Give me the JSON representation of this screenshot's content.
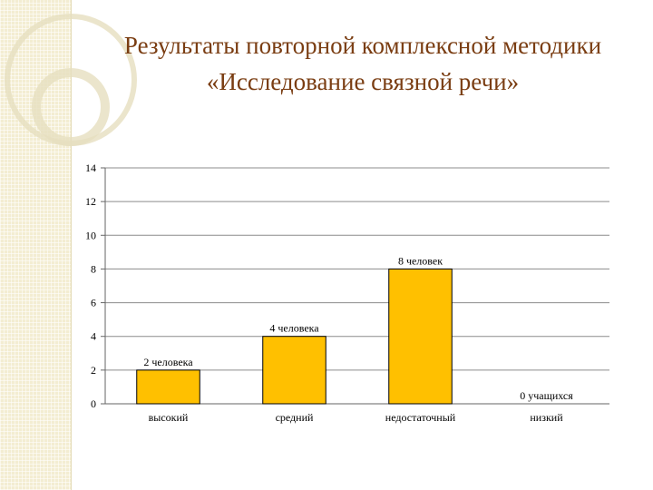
{
  "slide": {
    "title_line1": "Результаты повторной комплексной методики",
    "title_line2": "«Исследование связной речи»",
    "accent_color": "#7a3d12",
    "strip_color": "#f3edd2"
  },
  "chart_data": {
    "type": "bar",
    "categories": [
      "высокий",
      "средний",
      "недостаточный",
      "низкий"
    ],
    "values": [
      2,
      4,
      8,
      0
    ],
    "data_labels": [
      "2 человека",
      "4 человека",
      "8 человек",
      "0 учащихся"
    ],
    "yticks": [
      "0",
      "2",
      "4",
      "6",
      "8",
      "10",
      "12",
      "14"
    ],
    "ylim": [
      0,
      14
    ],
    "grid": true,
    "legend": "none",
    "bar_color": "#ffc000",
    "bar_border": "#000000",
    "grid_color": "#8c8c8c"
  }
}
